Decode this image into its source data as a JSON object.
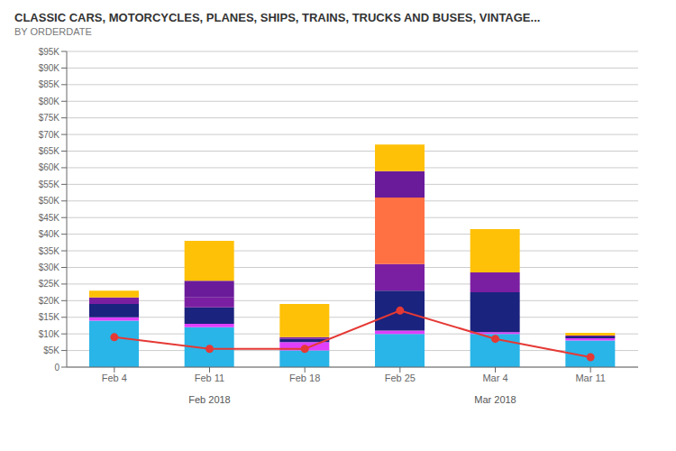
{
  "chart_data": {
    "type": "bar",
    "title": "CLASSIC CARS, MOTORCYCLES, PLANES, SHIPS, TRAINS, TRUCKS AND BUSES, VINTAGE...",
    "subtitle": "BY ORDERDATE",
    "categories": [
      "Feb 4",
      "Feb 11",
      "Feb 18",
      "Feb 25",
      "Mar 4",
      "Mar 11"
    ],
    "stacked": true,
    "grid": true,
    "ylim": [
      0,
      95000
    ],
    "yticks": [
      0,
      {
        "value": 5000,
        "label": "$5K"
      },
      {
        "value": 10000,
        "label": "$10K"
      },
      {
        "value": 15000,
        "label": "$15K"
      },
      {
        "value": 20000,
        "label": "$20K"
      },
      {
        "value": 25000,
        "label": "$25K"
      },
      {
        "value": 30000,
        "label": "$30K"
      },
      {
        "value": 35000,
        "label": "$35K"
      },
      {
        "value": 40000,
        "label": "$40K"
      },
      {
        "value": 45000,
        "label": "$45K"
      },
      {
        "value": 50000,
        "label": "$50K"
      },
      {
        "value": 55000,
        "label": "$55K"
      },
      {
        "value": 60000,
        "label": "$60K"
      },
      {
        "value": 65000,
        "label": "$65K"
      },
      {
        "value": 70000,
        "label": "$70K"
      },
      {
        "value": 75000,
        "label": "$75K"
      },
      {
        "value": 80000,
        "label": "$80K"
      },
      {
        "value": 85000,
        "label": "$85K"
      },
      {
        "value": 90000,
        "label": "$90K"
      },
      {
        "value": 95000,
        "label": "$95K"
      }
    ],
    "series": [
      {
        "type": "bar",
        "color": "#29b5e8",
        "values": [
          14000,
          12000,
          5000,
          10000,
          10000,
          8000
        ]
      },
      {
        "type": "bar",
        "color": "#e040fb",
        "values": [
          1000,
          1000,
          2500,
          1000,
          500,
          700
        ]
      },
      {
        "type": "bar",
        "color": "#1a237e",
        "values": [
          4000,
          5000,
          1000,
          12000,
          12000,
          500
        ]
      },
      {
        "type": "bar",
        "color": "#7b1fa2",
        "values": [
          2000,
          3000,
          500,
          8000,
          6000,
          300
        ]
      },
      {
        "type": "bar",
        "color": "#ff7043",
        "values": [
          0,
          0,
          0,
          20000,
          0,
          0
        ]
      },
      {
        "type": "bar",
        "color": "#6a1b9a",
        "values": [
          0,
          5000,
          0,
          8000,
          0,
          0
        ]
      },
      {
        "type": "bar",
        "color": "#ffc107",
        "values": [
          2000,
          12000,
          10000,
          8000,
          13000,
          800
        ]
      },
      {
        "type": "line",
        "color": "#e53935",
        "marker": "circle",
        "line_style": "solid",
        "values": [
          9000,
          5500,
          5500,
          17000,
          8500,
          3000
        ]
      }
    ],
    "annotations": [
      "Feb 2018",
      "Mar 2018"
    ]
  }
}
